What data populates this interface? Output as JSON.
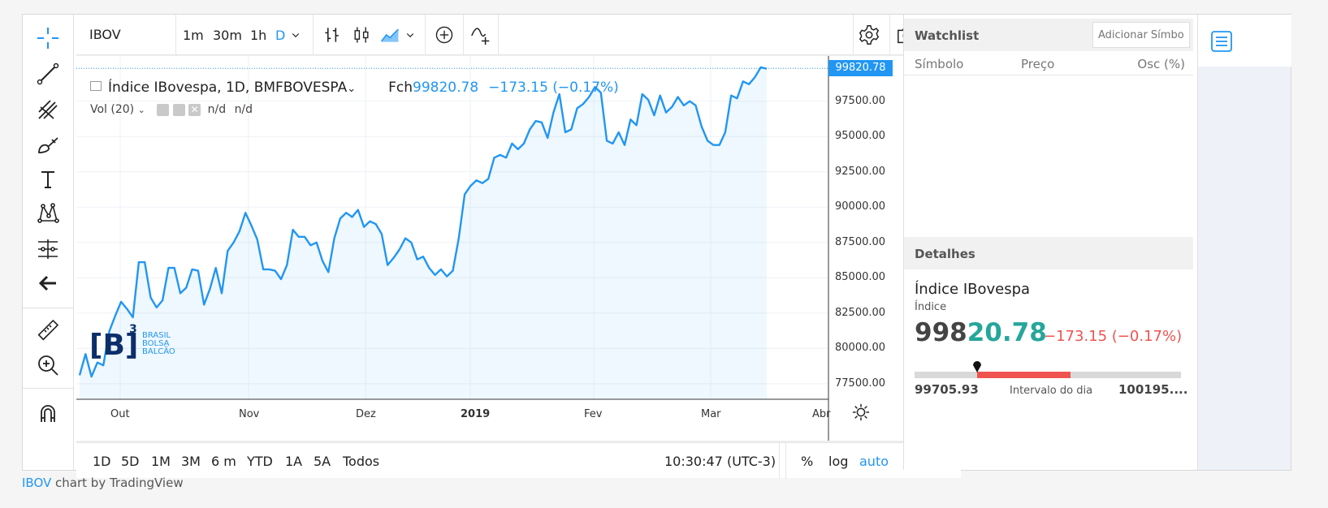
{
  "toolbar_left": {
    "tools": [
      "crosshair-icon",
      "trend-line-icon",
      "pitchfork-icon",
      "brush-icon",
      "text-icon",
      "pattern-icon",
      "measure-lines-icon",
      "back-arrow-icon",
      "ruler-icon",
      "zoom-in-icon",
      "magnet-icon"
    ]
  },
  "header": {
    "symbol": "IBOV",
    "intervals": [
      "1m",
      "30m",
      "1h",
      "D"
    ],
    "active_interval": "D"
  },
  "legend": {
    "title": "Índice IBovespa, 1D, BMFBOVESPA",
    "close_label": "Fch",
    "close_value": "99820.78",
    "change": "−173.15 (−0.17%)",
    "volume": "Vol (20)",
    "vol_val1": "n/d",
    "vol_val2": "n/d"
  },
  "logo": {
    "mark": "B",
    "sup": "3",
    "line1": "BRASIL",
    "line2": "BOLSA",
    "line3": "BALCÃO"
  },
  "price_tag": "99820.78",
  "chart_data": {
    "type": "area",
    "y_ticks": [
      "97500.00",
      "95000.00",
      "92500.00",
      "90000.00",
      "87500.00",
      "85000.00",
      "82500.00",
      "80000.00",
      "77500.00"
    ],
    "x_ticks": [
      "Out",
      "Nov",
      "Dez",
      "2019",
      "Fev",
      "Mar",
      "Abr"
    ],
    "ylim": [
      76400,
      100700
    ],
    "values": [
      78100,
      79600,
      78000,
      79000,
      78800,
      81200,
      82300,
      83300,
      82800,
      82200,
      86100,
      86100,
      83600,
      82900,
      83400,
      85700,
      85700,
      83900,
      84300,
      85600,
      85500,
      83100,
      84200,
      85700,
      83900,
      86900,
      87500,
      88300,
      89600,
      88700,
      87700,
      85600,
      85600,
      85500,
      84900,
      85900,
      88400,
      87900,
      87900,
      87300,
      87500,
      86200,
      85400,
      87800,
      89200,
      89600,
      89300,
      89800,
      88600,
      89000,
      88800,
      88100,
      85900,
      86400,
      87000,
      87800,
      87500,
      86300,
      86500,
      85700,
      85200,
      85600,
      85100,
      85500,
      87800,
      90900,
      91500,
      91900,
      91700,
      92000,
      93500,
      93700,
      93500,
      94500,
      94100,
      94500,
      95500,
      96100,
      96000,
      94900,
      96700,
      98000,
      95300,
      95500,
      97000,
      97300,
      97800,
      98500,
      98100,
      94700,
      94500,
      95300,
      94400,
      96200,
      95800,
      98000,
      97600,
      96500,
      97900,
      96700,
      97100,
      97800,
      97200,
      97500,
      97200,
      95700,
      94700,
      94400,
      94400,
      95300,
      97900,
      97700,
      98900,
      98700,
      99200,
      99900,
      99800
    ]
  },
  "bottom": {
    "ranges": [
      "1D",
      "5D",
      "1M",
      "3M",
      "6 m",
      "YTD",
      "1A",
      "5A",
      "Todos"
    ],
    "time": "10:30:47 (UTC-3)",
    "pct": "%",
    "log": "log",
    "auto": "auto"
  },
  "watchlist": {
    "title": "Watchlist",
    "input_placeholder": "Adicionar Símbolo",
    "col_symbol": "Símbolo",
    "col_price": "Preço",
    "col_change": "Osc (%)"
  },
  "details": {
    "title": "Detalhes",
    "name": "Índice IBovespa",
    "type": "Índice",
    "price_part1": "998",
    "price_part2": "20.78",
    "change": "−173.15 (−0.17%)",
    "day_low": "99705.93",
    "range_label": "Intervalo do dia",
    "day_high": "100195....",
    "range_low_frac": 0.235,
    "range_high_frac": 0.585,
    "current_frac": 0.235
  },
  "footer": {
    "link": "IBOV",
    "text": " chart by TradingView"
  },
  "colors": {
    "accent": "#2196f3",
    "up": "#26a69a",
    "down": "#ef5350"
  }
}
